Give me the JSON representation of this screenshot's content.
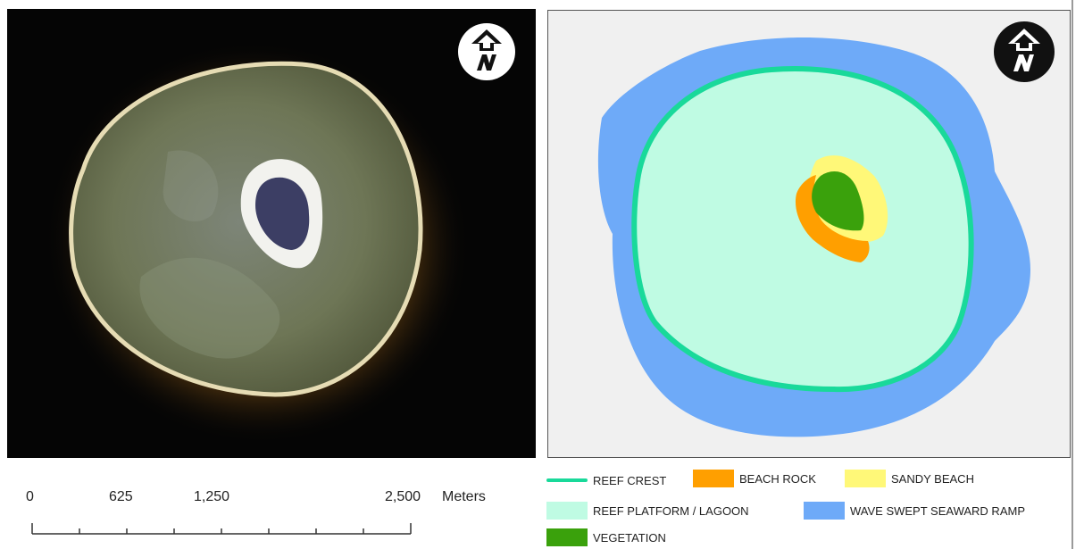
{
  "scale_bar": {
    "ticks": [
      "0",
      "625",
      "1,250",
      "2,500"
    ],
    "unit": "Meters"
  },
  "legend": [
    {
      "id": "reef-crest",
      "label": "REEF CREST",
      "color": "#19d99a",
      "swatch": "line"
    },
    {
      "id": "beach-rock",
      "label": "BEACH ROCK",
      "color": "#ff9f00",
      "swatch": "box"
    },
    {
      "id": "sandy-beach",
      "label": "SANDY BEACH",
      "color": "#fff878",
      "swatch": "box"
    },
    {
      "id": "reef-platform",
      "label": "REEF PLATFORM / LAGOON",
      "color": "#bffbe3",
      "swatch": "box"
    },
    {
      "id": "wave-swept",
      "label": "WAVE SWEPT SEAWARD RAMP",
      "color": "#6eaaf8",
      "swatch": "box"
    },
    {
      "id": "vegetation",
      "label": "VEGETATION",
      "color": "#3aa10c",
      "swatch": "box"
    }
  ],
  "colors": {
    "map_background": "#f0f0f0",
    "satellite_background": "#050505"
  },
  "icons": {
    "north_arrow": "north-arrow-icon"
  }
}
